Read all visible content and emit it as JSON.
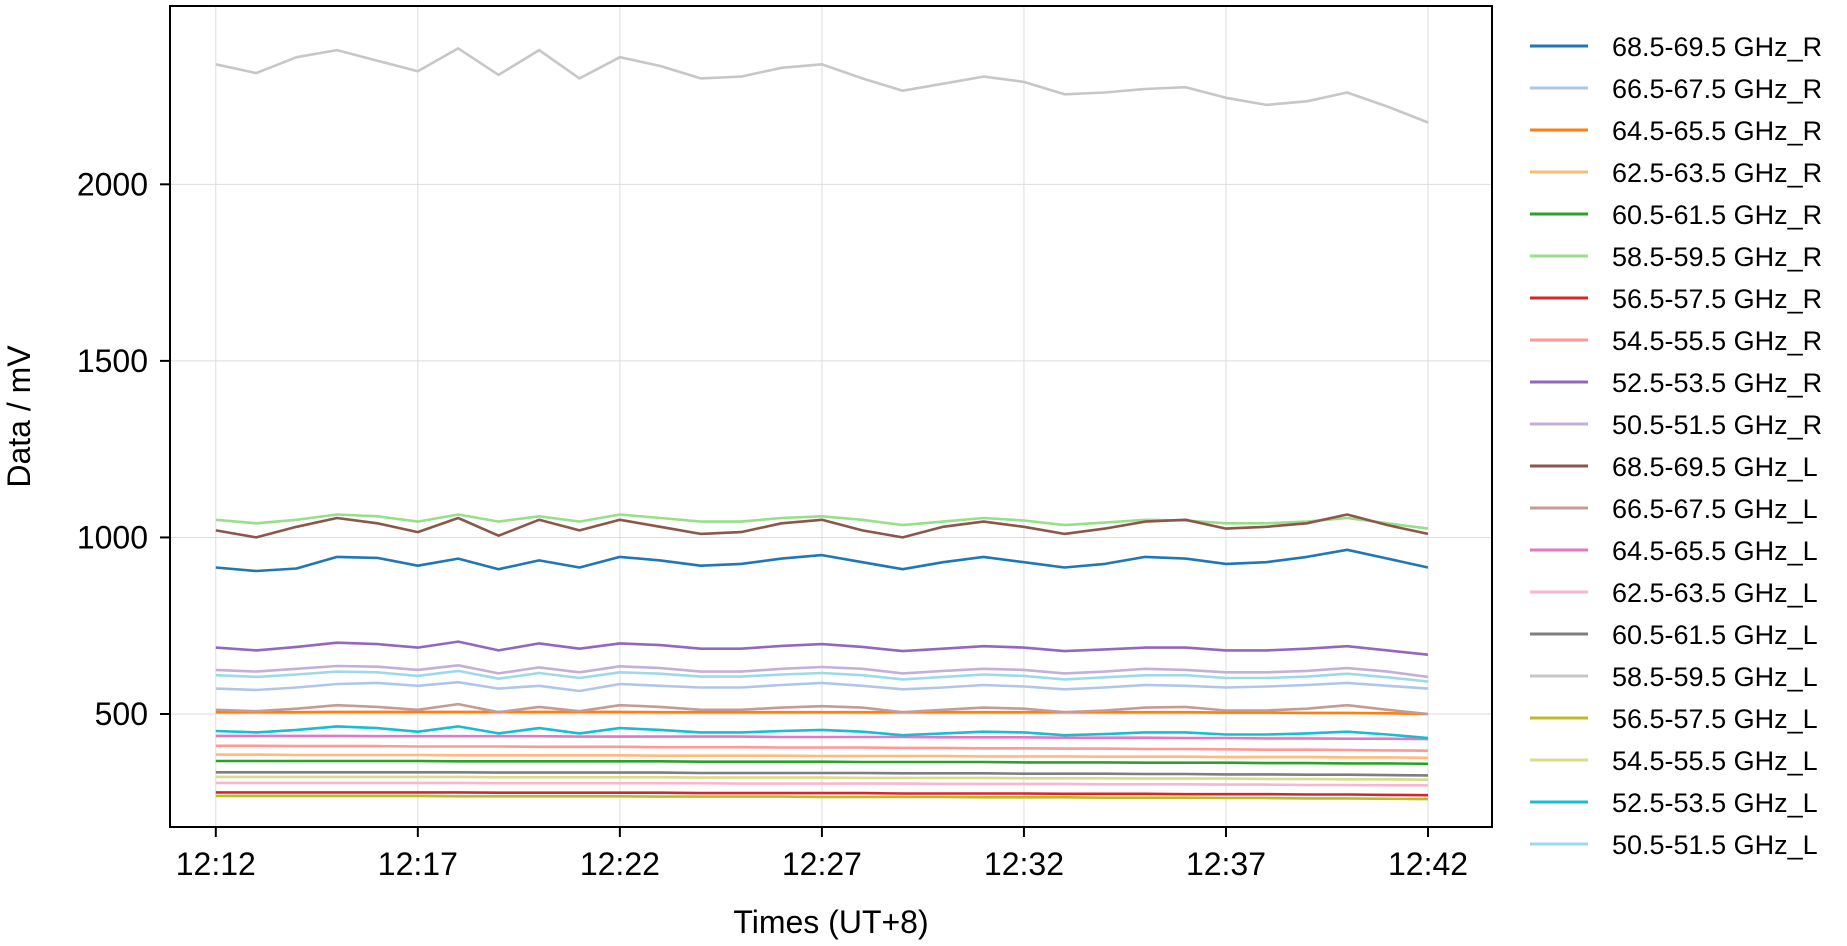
{
  "chart_data": {
    "type": "line",
    "title": "",
    "xlabel": "Times (UT+8)",
    "ylabel": "Data / mV",
    "x_ticks": [
      "12:12",
      "12:17",
      "12:22",
      "12:27",
      "12:32",
      "12:37",
      "12:42"
    ],
    "x_tick_minutes": [
      12,
      17,
      22,
      27,
      32,
      37,
      42
    ],
    "xlim": [
      "12:10:52",
      "12:43:35"
    ],
    "y_ticks": [
      500,
      1000,
      1500,
      2000
    ],
    "ylim": [
      180,
      2505
    ],
    "grid": true,
    "legend_position": "outside-right",
    "x": [
      "12:12",
      "12:13",
      "12:14",
      "12:15",
      "12:16",
      "12:17",
      "12:18",
      "12:19",
      "12:20",
      "12:21",
      "12:22",
      "12:23",
      "12:24",
      "12:25",
      "12:26",
      "12:27",
      "12:28",
      "12:29",
      "12:30",
      "12:31",
      "12:32",
      "12:33",
      "12:34",
      "12:35",
      "12:36",
      "12:37",
      "12:38",
      "12:39",
      "12:40",
      "12:41",
      "12:42"
    ],
    "series": [
      {
        "name": "68.5-69.5 GHz_R",
        "color": "#1f77b4",
        "values": [
          915,
          905,
          912,
          945,
          942,
          920,
          940,
          910,
          935,
          915,
          945,
          935,
          920,
          925,
          940,
          950,
          930,
          910,
          930,
          945,
          930,
          915,
          925,
          945,
          940,
          925,
          930,
          945,
          965,
          940,
          915
        ]
      },
      {
        "name": "66.5-67.5 GHz_R",
        "color": "#aec7e8",
        "values": [
          572,
          568,
          575,
          585,
          588,
          580,
          590,
          572,
          580,
          565,
          585,
          580,
          575,
          575,
          582,
          588,
          580,
          570,
          575,
          582,
          578,
          570,
          575,
          582,
          580,
          575,
          578,
          582,
          588,
          580,
          572
        ]
      },
      {
        "name": "64.5-65.5 GHz_R",
        "color": "#ff7f0e",
        "values": [
          505,
          505,
          505,
          506,
          506,
          506,
          506,
          506,
          506,
          506,
          506,
          505,
          505,
          505,
          505,
          505,
          505,
          505,
          505,
          505,
          505,
          505,
          505,
          505,
          505,
          504,
          504,
          503,
          503,
          502,
          500
        ]
      },
      {
        "name": "62.5-63.5 GHz_R",
        "color": "#ffbb78",
        "values": [
          385,
          385,
          384,
          384,
          384,
          384,
          383,
          383,
          383,
          383,
          383,
          382,
          382,
          382,
          382,
          381,
          381,
          381,
          381,
          380,
          380,
          380,
          379,
          379,
          379,
          378,
          378,
          378,
          377,
          377,
          376
        ]
      },
      {
        "name": "60.5-61.5 GHz_R",
        "color": "#2ca02c",
        "values": [
          367,
          367,
          367,
          367,
          367,
          367,
          366,
          366,
          366,
          366,
          366,
          366,
          365,
          365,
          365,
          365,
          364,
          364,
          364,
          364,
          363,
          363,
          363,
          362,
          362,
          362,
          361,
          361,
          360,
          360,
          359
        ]
      },
      {
        "name": "58.5-59.5 GHz_R",
        "color": "#98df8a",
        "values": [
          1050,
          1040,
          1050,
          1065,
          1060,
          1045,
          1065,
          1045,
          1060,
          1045,
          1065,
          1055,
          1045,
          1045,
          1055,
          1060,
          1050,
          1035,
          1045,
          1055,
          1048,
          1035,
          1042,
          1050,
          1048,
          1040,
          1040,
          1045,
          1055,
          1040,
          1025
        ]
      },
      {
        "name": "56.5-57.5 GHz_R",
        "color": "#d62728",
        "values": [
          278,
          278,
          278,
          278,
          278,
          278,
          278,
          277,
          277,
          277,
          277,
          277,
          276,
          276,
          276,
          276,
          276,
          275,
          275,
          275,
          275,
          274,
          274,
          274,
          273,
          273,
          273,
          272,
          272,
          271,
          270
        ]
      },
      {
        "name": "54.5-55.5 GHz_R",
        "color": "#ff9896",
        "values": [
          410,
          410,
          409,
          409,
          409,
          408,
          408,
          408,
          407,
          407,
          407,
          406,
          406,
          406,
          405,
          405,
          405,
          404,
          404,
          403,
          403,
          402,
          402,
          401,
          401,
          400,
          399,
          399,
          398,
          397,
          396
        ]
      },
      {
        "name": "52.5-53.5 GHz_R",
        "color": "#9467bd",
        "values": [
          688,
          680,
          690,
          702,
          698,
          688,
          705,
          680,
          700,
          685,
          700,
          695,
          685,
          685,
          693,
          698,
          690,
          678,
          685,
          692,
          688,
          678,
          683,
          688,
          688,
          680,
          680,
          685,
          692,
          680,
          668
        ]
      },
      {
        "name": "50.5-51.5 GHz_R",
        "color": "#c5b0d5",
        "values": [
          625,
          620,
          628,
          636,
          634,
          625,
          638,
          615,
          632,
          618,
          635,
          630,
          620,
          620,
          628,
          633,
          628,
          615,
          622,
          628,
          625,
          615,
          620,
          628,
          625,
          618,
          618,
          622,
          630,
          620,
          605
        ]
      },
      {
        "name": "68.5-69.5 GHz_L",
        "color": "#8c564b",
        "values": [
          1020,
          1000,
          1030,
          1055,
          1040,
          1015,
          1055,
          1005,
          1050,
          1020,
          1050,
          1030,
          1010,
          1015,
          1040,
          1050,
          1020,
          1000,
          1030,
          1045,
          1030,
          1010,
          1025,
          1045,
          1050,
          1025,
          1030,
          1040,
          1065,
          1035,
          1010
        ]
      },
      {
        "name": "66.5-67.5 GHz_L",
        "color": "#c49c94",
        "values": [
          512,
          508,
          515,
          525,
          520,
          512,
          528,
          505,
          520,
          508,
          525,
          520,
          512,
          512,
          518,
          522,
          518,
          505,
          512,
          518,
          515,
          505,
          510,
          518,
          520,
          510,
          510,
          515,
          525,
          512,
          500
        ]
      },
      {
        "name": "64.5-65.5 GHz_L",
        "color": "#e377c2",
        "values": [
          438,
          438,
          438,
          438,
          437,
          437,
          437,
          437,
          437,
          436,
          436,
          436,
          436,
          436,
          435,
          435,
          435,
          435,
          434,
          434,
          434,
          433,
          433,
          433,
          432,
          432,
          431,
          431,
          430,
          430,
          429
        ]
      },
      {
        "name": "62.5-63.5 GHz_L",
        "color": "#f7b6d2",
        "values": [
          305,
          305,
          305,
          305,
          305,
          305,
          305,
          304,
          304,
          304,
          304,
          304,
          304,
          303,
          303,
          303,
          303,
          303,
          302,
          302,
          302,
          302,
          301,
          301,
          301,
          300,
          300,
          299,
          299,
          298,
          298
        ]
      },
      {
        "name": "60.5-61.5 GHz_L",
        "color": "#7f7f7f",
        "values": [
          335,
          335,
          335,
          335,
          335,
          335,
          335,
          334,
          334,
          334,
          334,
          334,
          333,
          333,
          333,
          333,
          333,
          332,
          332,
          332,
          331,
          331,
          331,
          330,
          330,
          329,
          329,
          328,
          328,
          327,
          326
        ]
      },
      {
        "name": "58.5-59.5 GHz_L",
        "color": "#c7c7c7",
        "values": [
          2340,
          2315,
          2360,
          2380,
          2350,
          2320,
          2385,
          2310,
          2380,
          2300,
          2360,
          2335,
          2300,
          2305,
          2330,
          2340,
          2300,
          2265,
          2285,
          2305,
          2290,
          2255,
          2260,
          2270,
          2275,
          2245,
          2225,
          2235,
          2260,
          2220,
          2175
        ]
      },
      {
        "name": "56.5-57.5 GHz_L",
        "color": "#bcbd22",
        "values": [
          268,
          268,
          268,
          268,
          268,
          268,
          267,
          267,
          267,
          267,
          267,
          266,
          266,
          266,
          266,
          265,
          265,
          265,
          265,
          264,
          264,
          264,
          263,
          263,
          263,
          262,
          262,
          261,
          261,
          260,
          259
        ]
      },
      {
        "name": "54.5-55.5 GHz_L",
        "color": "#dbdb8d",
        "values": [
          322,
          322,
          322,
          322,
          322,
          322,
          322,
          321,
          321,
          321,
          321,
          321,
          320,
          320,
          320,
          320,
          319,
          319,
          319,
          319,
          318,
          318,
          318,
          317,
          317,
          317,
          316,
          316,
          315,
          315,
          314
        ]
      },
      {
        "name": "52.5-53.5 GHz_L",
        "color": "#17becf",
        "values": [
          452,
          448,
          455,
          465,
          460,
          450,
          465,
          445,
          460,
          445,
          460,
          455,
          448,
          448,
          452,
          455,
          450,
          440,
          445,
          450,
          448,
          440,
          443,
          448,
          448,
          442,
          442,
          445,
          450,
          442,
          432
        ]
      },
      {
        "name": "50.5-51.5 GHz_L",
        "color": "#9edae5",
        "values": [
          610,
          605,
          612,
          620,
          618,
          608,
          622,
          600,
          616,
          602,
          618,
          614,
          606,
          606,
          612,
          616,
          610,
          598,
          605,
          612,
          608,
          598,
          604,
          610,
          610,
          602,
          602,
          606,
          614,
          604,
          592
        ]
      }
    ]
  }
}
